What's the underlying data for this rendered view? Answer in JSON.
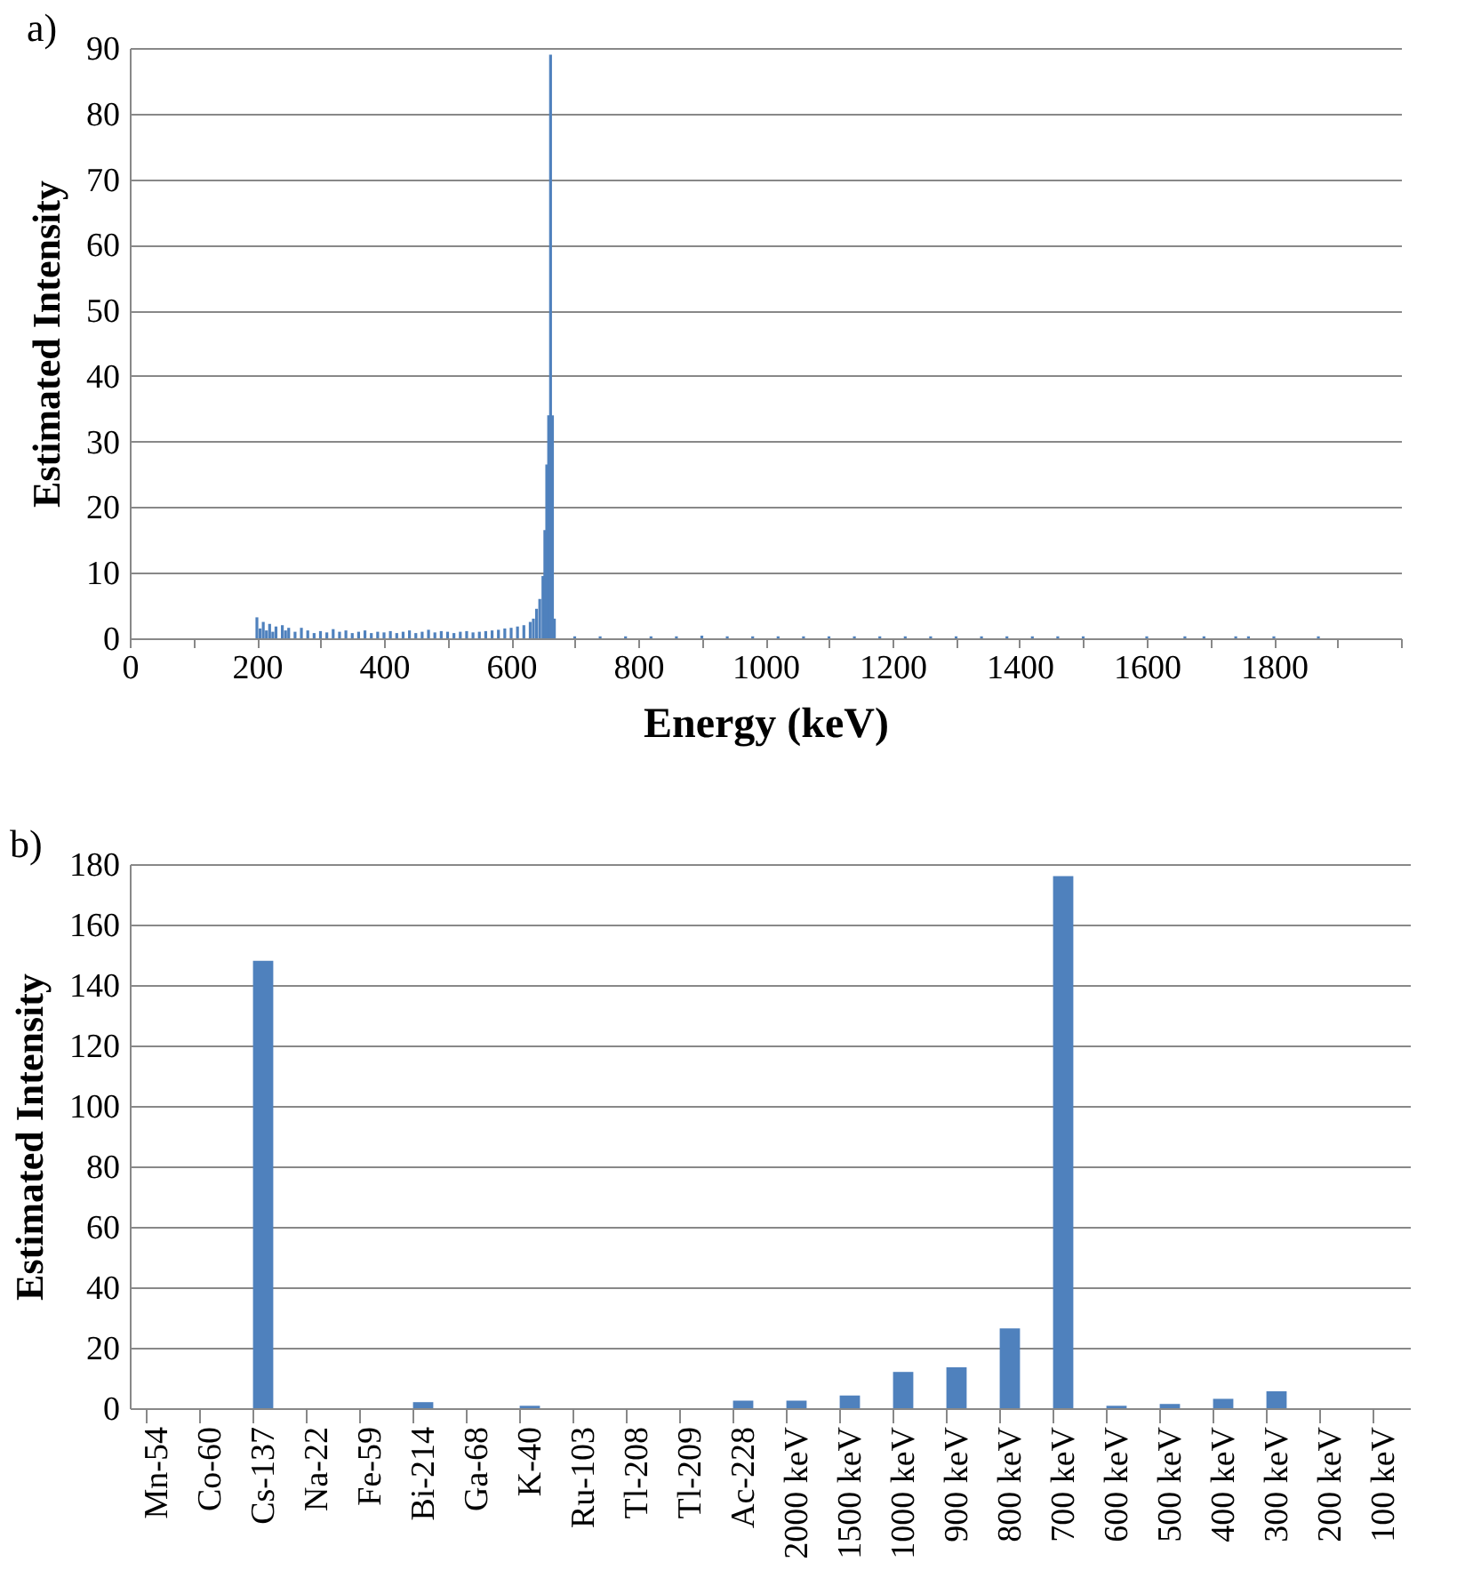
{
  "chart_data": [
    {
      "type": "bar",
      "annotations": [
        "a)"
      ],
      "xlabel": "Energy (keV)",
      "ylabel": "Estimated Intensity",
      "color": "#4f81bd",
      "grid": "y",
      "x": [
        200,
        205,
        210,
        215,
        220,
        225,
        230,
        240,
        245,
        250,
        260,
        270,
        280,
        290,
        300,
        310,
        320,
        330,
        340,
        350,
        360,
        370,
        380,
        390,
        400,
        410,
        420,
        430,
        440,
        450,
        460,
        470,
        480,
        490,
        500,
        510,
        520,
        530,
        540,
        550,
        560,
        570,
        580,
        590,
        600,
        610,
        620,
        630,
        635,
        640,
        645,
        650,
        653,
        656,
        659,
        662,
        665,
        668,
        700,
        740,
        780,
        820,
        860,
        900,
        940,
        980,
        1020,
        1060,
        1100,
        1140,
        1180,
        1220,
        1260,
        1300,
        1340,
        1380,
        1420,
        1460,
        1500,
        1600,
        1660,
        1690,
        1740,
        1760,
        1800,
        1870
      ],
      "values": [
        3.2,
        1.5,
        2.5,
        1.2,
        2.2,
        1.0,
        1.8,
        2.0,
        1.2,
        1.6,
        1.0,
        1.6,
        1.2,
        0.8,
        1.1,
        0.9,
        1.4,
        1.0,
        1.2,
        0.8,
        1.0,
        1.2,
        0.8,
        1.0,
        0.9,
        1.1,
        0.8,
        1.0,
        1.2,
        0.8,
        1.0,
        1.3,
        0.9,
        1.1,
        1.0,
        0.8,
        1.0,
        1.1,
        0.9,
        1.0,
        1.1,
        1.2,
        1.3,
        1.5,
        1.6,
        1.8,
        2.0,
        2.5,
        3,
        4.5,
        6,
        9.5,
        16.5,
        26.5,
        34,
        89,
        34,
        3,
        0.3,
        0.3,
        0.3,
        0.3,
        0.3,
        0.4,
        0.3,
        0.3,
        0.3,
        0.3,
        0.3,
        0.3,
        0.3,
        0.3,
        0.3,
        0.3,
        0.3,
        0.3,
        0.3,
        0.3,
        0.3,
        0.3,
        0.3,
        0.3,
        0.3,
        0.3,
        0.3,
        0.3
      ],
      "xlim": [
        0,
        2000
      ],
      "xticks": [
        0,
        {
          "value": 100,
          "label": null
        },
        200,
        {
          "value": 300,
          "label": null
        },
        400,
        {
          "value": 500,
          "label": null
        },
        600,
        {
          "value": 700,
          "label": null
        },
        800,
        {
          "value": 900,
          "label": null
        },
        1000,
        {
          "value": 1100,
          "label": null
        },
        1200,
        {
          "value": 1300,
          "label": null
        },
        1400,
        {
          "value": 1500,
          "label": null
        },
        1600,
        {
          "value": 1700,
          "label": null
        },
        1800,
        {
          "value": 1900,
          "label": null
        },
        {
          "value": 2000,
          "label": null
        }
      ],
      "ylim": [
        0,
        90
      ],
      "yticks": [
        0,
        10,
        20,
        30,
        40,
        50,
        60,
        70,
        80,
        90
      ]
    },
    {
      "type": "bar",
      "annotations": [
        "b)"
      ],
      "ylabel": "Estimated Intensity",
      "color": "#4f81bd",
      "grid": "y",
      "categories": [
        "Mn-54",
        "Co-60",
        "Cs-137",
        "Na-22",
        "Fe-59",
        "Bi-214",
        "Ga-68",
        "K-40",
        "Ru-103",
        "Tl-208",
        "Tl-209",
        "Ac-228",
        "2000 keV",
        "1500 keV",
        "1000 keV",
        "900 keV",
        "800 keV",
        "700 keV",
        "600 keV",
        "500 keV",
        "400 keV",
        "300 keV",
        "200 keV",
        "100 keV"
      ],
      "values": [
        0,
        0,
        148,
        0,
        0,
        2,
        0,
        0.8,
        0,
        0,
        0,
        2.5,
        2.5,
        4.2,
        12,
        13.5,
        26.4,
        176,
        0.8,
        1.4,
        3.1,
        5.6,
        0,
        0
      ],
      "ylim": [
        0,
        180
      ],
      "yticks": [
        0,
        20,
        40,
        60,
        80,
        100,
        120,
        140,
        160,
        180
      ]
    }
  ]
}
